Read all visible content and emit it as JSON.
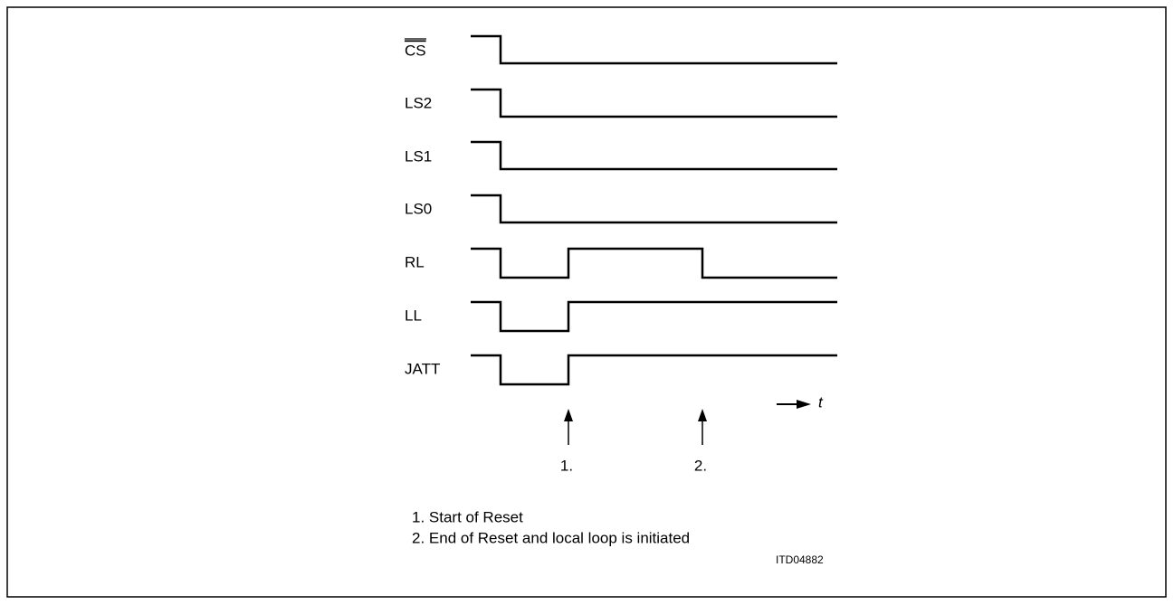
{
  "signals": [
    "CS",
    "LS2",
    "LS1",
    "LS0",
    "RL",
    "LL",
    "JATT"
  ],
  "markers": [
    "1.",
    "2."
  ],
  "time_label": "t",
  "notes": [
    "1. Start of Reset",
    "2. End of Reset and local loop is initiated"
  ],
  "figure_id": "ITD04882"
}
